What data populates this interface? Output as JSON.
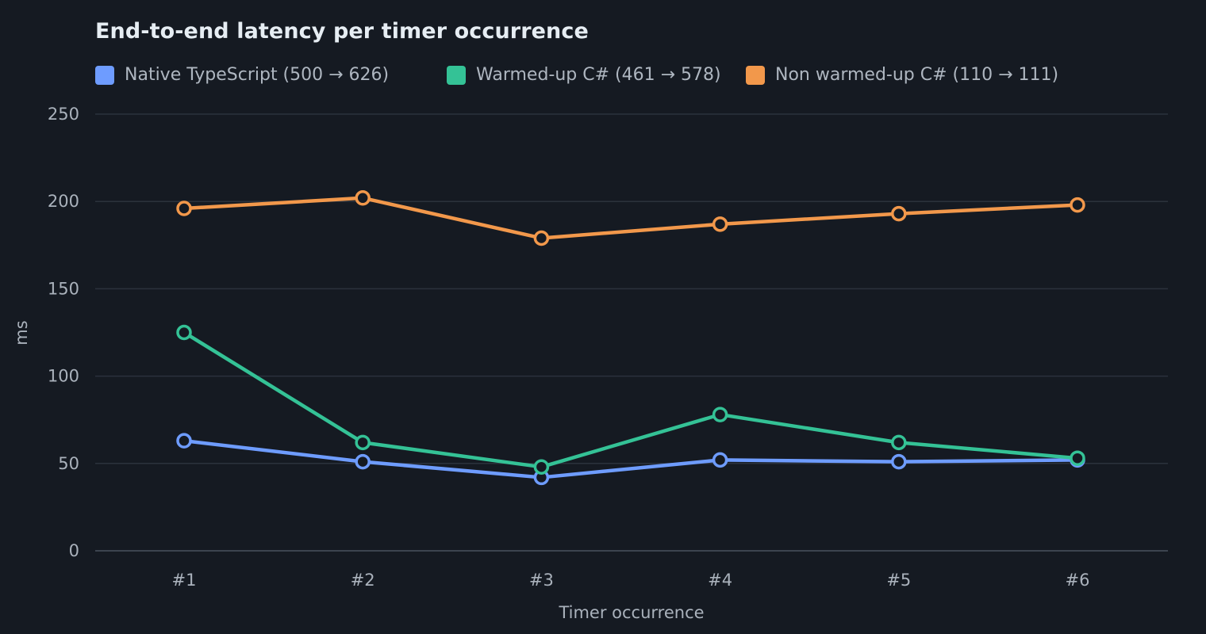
{
  "chart_data": {
    "type": "line",
    "title": "End-to-end latency per timer occurrence",
    "xlabel": "Timer occurrence",
    "ylabel": "ms",
    "categories": [
      "#1",
      "#2",
      "#3",
      "#4",
      "#5",
      "#6"
    ],
    "ylim": [
      0,
      250
    ],
    "yticks": [
      "0",
      "50",
      "100",
      "150",
      "200",
      "250"
    ],
    "grid": true,
    "legend_position": "top-left",
    "series": [
      {
        "name": "Native TypeScript (500 → 626)",
        "color": "#6e9cff",
        "values": [
          63,
          51,
          42,
          52,
          51,
          52
        ]
      },
      {
        "name": "Warmed-up C# (461 → 578)",
        "color": "#34c296",
        "values": [
          125,
          62,
          48,
          78,
          62,
          53
        ]
      },
      {
        "name": "Non warmed-up C# (110 → 111)",
        "color": "#f2984b",
        "values": [
          196,
          202,
          179,
          187,
          193,
          198
        ]
      }
    ]
  }
}
